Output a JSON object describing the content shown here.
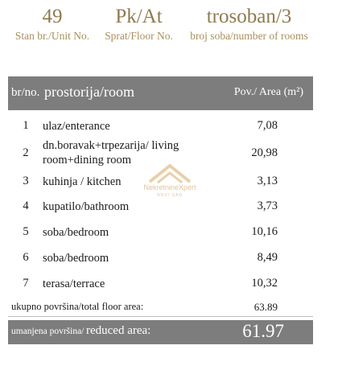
{
  "header": {
    "unit": {
      "value": "49",
      "label": "Stan br./Unit No."
    },
    "floor": {
      "value": "Pk/At",
      "label": "Sprat/Floor No."
    },
    "rooms": {
      "value": "trosoban/3",
      "label": "broj soba/number of rooms"
    }
  },
  "table": {
    "col_no": "br/no.",
    "col_room": "prostorija/room",
    "col_area": "Pov./ Area (m²)",
    "rows": [
      {
        "no": "1",
        "room": "ulaz/enterance",
        "area": "7,08"
      },
      {
        "no": "2",
        "room": "dn.boravak+trpezarija/ living room+dining room",
        "area": "20,98"
      },
      {
        "no": "3",
        "room": "kuhinja / kitchen",
        "area": "3,13"
      },
      {
        "no": "4",
        "room": "kupatilo/bathroom",
        "area": "3,73"
      },
      {
        "no": "5",
        "room": "soba/bedroom",
        "area": "10,16"
      },
      {
        "no": "6",
        "room": "soba/bedroom",
        "area": "8,49"
      },
      {
        "no": "7",
        "room": "terasa/terrace",
        "area": "10,32"
      }
    ]
  },
  "total": {
    "label": "ukupno površina/total floor area:",
    "value": "63.89"
  },
  "reduced": {
    "label_local": "umanjena površina/",
    "label_en": "reduced area:",
    "value": "61.97"
  },
  "watermark": {
    "brand": "NekretnineXpert",
    "sub": "NOVI SAD"
  },
  "colors": {
    "header_bar": "#7d7d7d",
    "gold_text": "#a88f5c",
    "white_text": "#ffffff"
  }
}
